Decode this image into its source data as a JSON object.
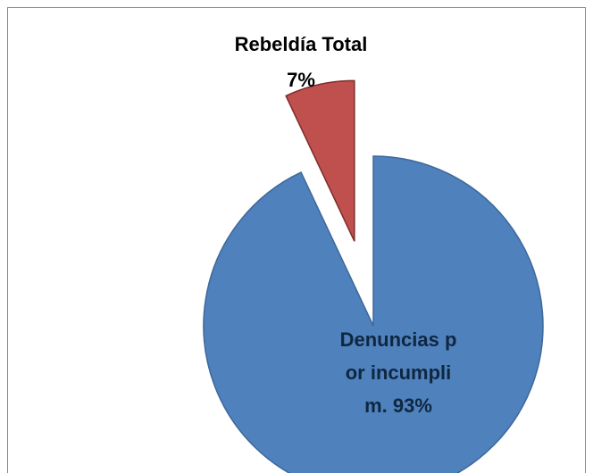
{
  "chart_data": {
    "type": "pie",
    "categories": [
      "Denuncias por incumplim.",
      "Rebeldía Total"
    ],
    "values": [
      93,
      7
    ],
    "value_labels": [
      "93%",
      "7%"
    ],
    "colors": [
      "#4f81bd",
      "#c0504d"
    ]
  }
}
